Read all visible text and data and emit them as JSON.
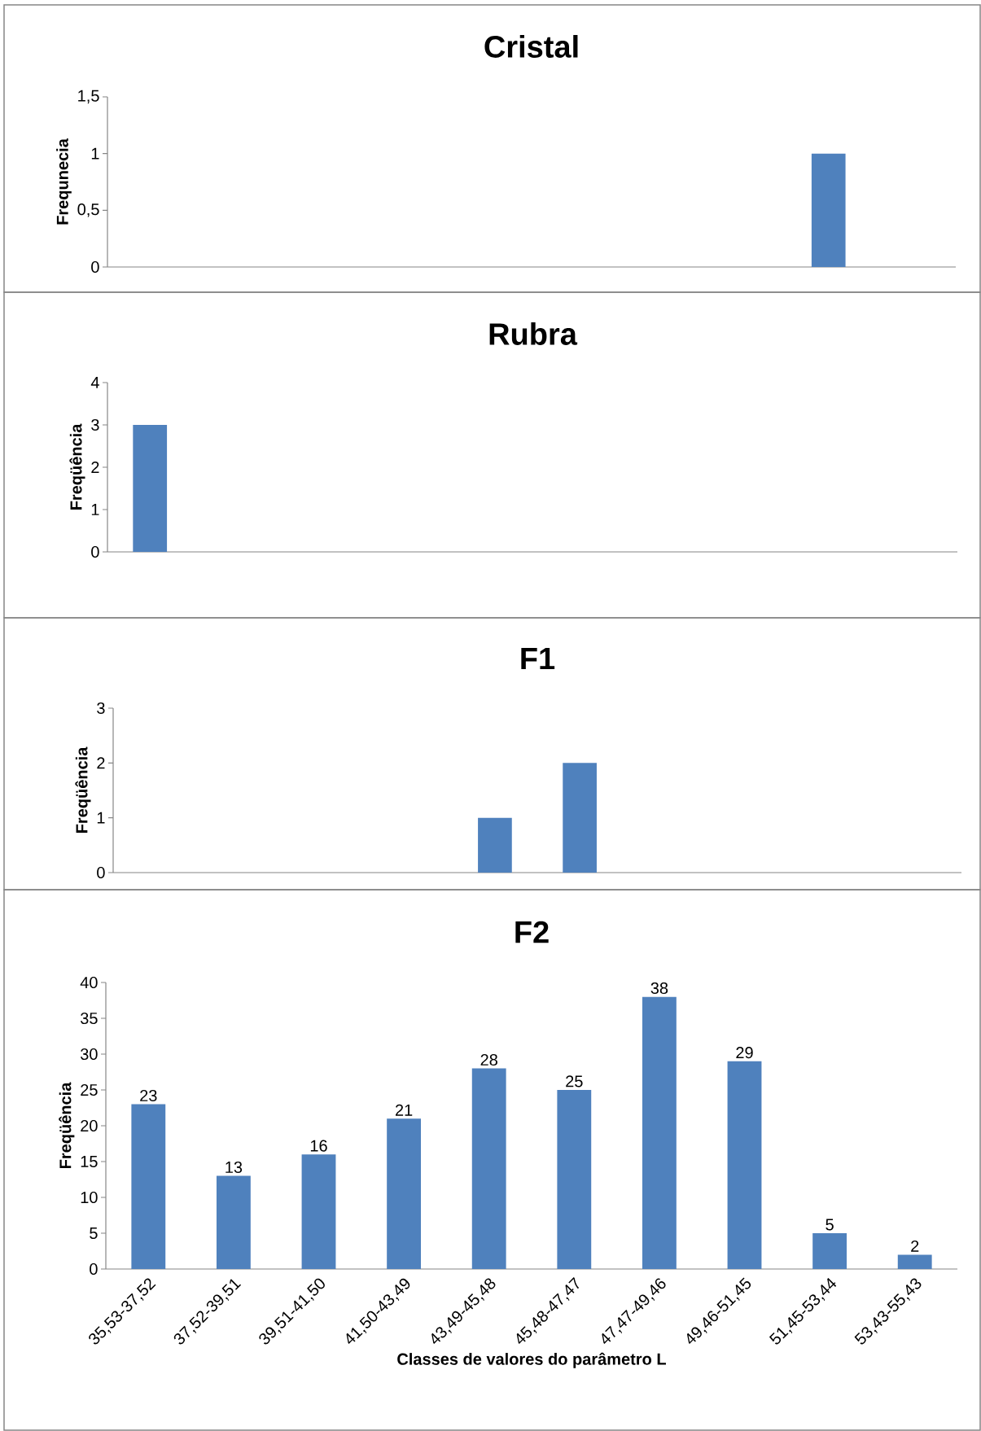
{
  "chart_data": [
    {
      "type": "bar",
      "title": "Cristal",
      "ylabel": "Frequnecia",
      "categories": [
        null,
        null,
        null,
        null,
        null,
        null,
        null,
        null,
        null,
        null
      ],
      "values": [
        0,
        0,
        0,
        0,
        0,
        0,
        0,
        0,
        1,
        0
      ],
      "color": "#4f81bd",
      "ylim": [
        0,
        1.5
      ],
      "yticks": [
        0,
        {
          "value": 0.5,
          "label": "0,5"
        },
        1,
        {
          "value": 1.5,
          "label": "1,5"
        }
      ],
      "tick_labels": "y"
    },
    {
      "type": "bar",
      "title": "Rubra",
      "ylabel": "Freqüência",
      "categories": [
        null,
        null,
        null,
        null,
        null,
        null,
        null,
        null,
        null,
        null
      ],
      "values": [
        3,
        0,
        0,
        0,
        0,
        0,
        0,
        0,
        0,
        0
      ],
      "color": "#4f81bd",
      "ylim": [
        0,
        4
      ],
      "yticks": [
        0,
        1,
        2,
        3,
        4
      ],
      "tick_labels": "y"
    },
    {
      "type": "bar",
      "title": "F1",
      "ylabel": "Freqüência",
      "categories": [
        null,
        null,
        null,
        null,
        null,
        null,
        null,
        null,
        null,
        null
      ],
      "values": [
        0,
        0,
        0,
        0,
        1,
        2,
        0,
        0,
        0,
        0
      ],
      "color": "#4f81bd",
      "ylim": [
        0,
        3
      ],
      "yticks": [
        0,
        1,
        2,
        3
      ],
      "tick_labels": "y"
    },
    {
      "type": "bar",
      "title": "F2",
      "ylabel": "Freqüência",
      "xlabel": "Classes de valores do parâmetro L",
      "categories": [
        "35,53-37,52",
        "37,52-39,51",
        "39,51-41,50",
        "41,50-43,49",
        "43,49-45,48",
        "45,48-47,47",
        "47,47-49,46",
        "49,46-51,45",
        "51,45-53,44",
        "53,43-55,43"
      ],
      "values": [
        23,
        13,
        16,
        21,
        28,
        25,
        38,
        29,
        5,
        2
      ],
      "color": "#4f81bd",
      "ylim": [
        0,
        40
      ],
      "yticks": [
        0,
        5,
        10,
        15,
        20,
        25,
        30,
        35,
        40
      ],
      "data_labels": true
    }
  ]
}
